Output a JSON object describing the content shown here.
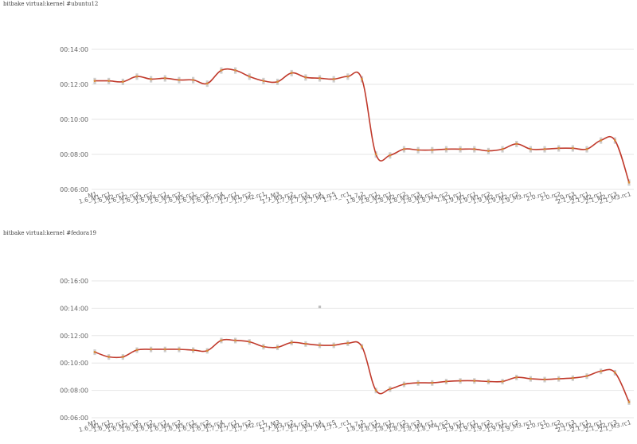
{
  "chart_data": [
    {
      "type": "line",
      "title": "bitbake virtual:kernel #ubuntu12",
      "y_ticks": [
        "00:06:00",
        "00:08:00",
        "00:10:00",
        "00:12:00",
        "00:14:00"
      ],
      "ylim_minutes": [
        6,
        14
      ],
      "grid": true,
      "line_color": "#c0392b",
      "point_color": "#bdbdbd",
      "categories": [
        "M1",
        "1.6_M1.rc1",
        "1.6_M2.rc1",
        "1.6_M2.rc2",
        "1.6_M3.rc2",
        "1.6_M4.rc1",
        "1.6_M4.rc2",
        "1.6_M5.rc1",
        "1.6_M5.rc2",
        "1.6_M5.rc4",
        "1.7_M1.rc1",
        "1.7_M1.rc2",
        "1.7_M2.rc1",
        "1.7_M3",
        "1.7_M3.rc2",
        "1.7_M4.rc3",
        "1.7_M4.rc4",
        "1.7_M4.rc5",
        "1.7.1_rc1",
        "1.7.2",
        "1.8_M1.rc1",
        "1.8_M2.rc1",
        "1.8_M2.rc2",
        "1.8_M3.rc3",
        "1.8_M4.rc1",
        "1.8_M4.rc2",
        "1.8.1.rc1",
        "1.9_M1.rc1",
        "1.9_M1.rc2",
        "1.9_M2.rc1",
        "1.9_M2.rc2",
        "1.9_M3.rc1",
        "2.0.rc1",
        "2.0.rc2",
        "2.0.rc3",
        "2.1_M1.rc1",
        "2.1_M2.rc1",
        "2.1_M2.rc3",
        "2.1_M3.rc1"
      ],
      "values_minutes": [
        12.2,
        12.2,
        12.15,
        12.45,
        12.3,
        12.35,
        12.25,
        12.25,
        12.05,
        12.8,
        12.8,
        12.45,
        12.2,
        12.15,
        12.65,
        12.4,
        12.35,
        12.3,
        12.45,
        12.3,
        8.0,
        7.95,
        8.3,
        8.25,
        8.25,
        8.3,
        8.3,
        8.3,
        8.2,
        8.3,
        8.6,
        8.3,
        8.3,
        8.35,
        8.35,
        8.3,
        8.8,
        8.8,
        6.4
      ]
    },
    {
      "type": "line",
      "title": "bitbake virtual:kernel #fedora19",
      "y_ticks": [
        "00:06:00",
        "00:08:00",
        "00:10:00",
        "00:12:00",
        "00:14:00",
        "00:16:00"
      ],
      "ylim_minutes": [
        6,
        16
      ],
      "grid": true,
      "line_color": "#c0392b",
      "point_color": "#bdbdbd",
      "categories": [
        "M1",
        "1.6_M1.rc1",
        "1.6_M2.rc1",
        "1.6_M2.rc2",
        "1.6_M3.rc2",
        "1.6_M4.rc1",
        "1.6_M4.rc2",
        "1.6_M5.rc1",
        "1.6_M5.rc2",
        "1.6_M5.rc4",
        "1.7_M1.rc1",
        "1.7_M1.rc2",
        "1.7_M2.rc1",
        "1.7_M3",
        "1.7_M3.rc2",
        "1.7_M4.rc3",
        "1.7_M4.rc4",
        "1.7_M4.rc5",
        "1.7.1_rc1",
        "1.7.2",
        "1.8_M1.rc1",
        "1.8_M2.rc1",
        "1.8_M2.rc2",
        "1.8_M3.rc3",
        "1.8_M4.rc1",
        "1.8_M4.rc2",
        "1.8.1.rc1",
        "1.9_M1.rc1",
        "1.9_M1.rc2",
        "1.9_M2.rc1",
        "1.9_M2.rc2",
        "1.9_M3.rc1",
        "2.0.rc1",
        "2.0.rc2",
        "2.0.rc3",
        "2.1_M1.rc1",
        "2.1_M2.rc1",
        "2.1_M2.rc3",
        "2.1_M3.rc1"
      ],
      "values_minutes": [
        10.8,
        10.45,
        10.45,
        10.95,
        11.0,
        11.0,
        11.0,
        10.95,
        10.9,
        11.65,
        11.65,
        11.55,
        11.2,
        11.15,
        11.5,
        11.4,
        11.3,
        11.3,
        11.45,
        11.2,
        8.0,
        8.1,
        8.45,
        8.55,
        8.55,
        8.65,
        8.7,
        8.7,
        8.65,
        8.65,
        8.95,
        8.85,
        8.8,
        8.85,
        8.9,
        9.05,
        9.4,
        9.3,
        7.15
      ],
      "outliers": [
        {
          "category": "1.7_M4.rc4",
          "value_minutes": 14.1
        }
      ]
    }
  ]
}
